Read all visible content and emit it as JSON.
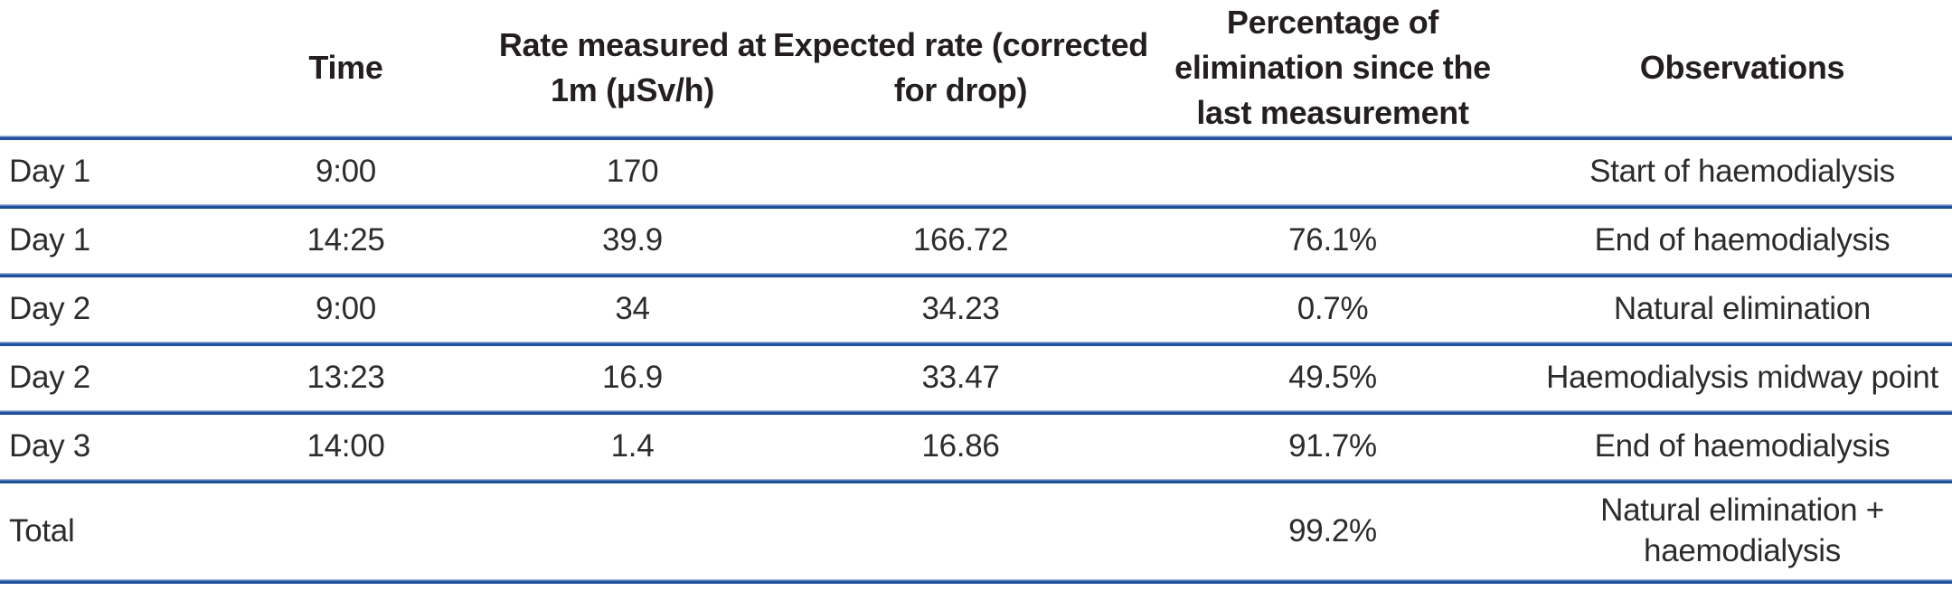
{
  "table": {
    "columns": [
      {
        "key": "day",
        "label": ""
      },
      {
        "key": "time",
        "label": "Time"
      },
      {
        "key": "rate",
        "label": "Rate measured at\n1m (μSv/h)"
      },
      {
        "key": "expected",
        "label": "Expected rate (corrected\nfor drop)"
      },
      {
        "key": "percentage",
        "label": "Percentage of\nelimination since the\nlast measurement"
      },
      {
        "key": "observations",
        "label": "Observations"
      }
    ],
    "rows": [
      {
        "day": "Day 1",
        "time": "9:00",
        "rate": "170",
        "expected": "",
        "percentage": "",
        "observations": "Start of haemodialysis"
      },
      {
        "day": "Day 1",
        "time": "14:25",
        "rate": "39.9",
        "expected": "166.72",
        "percentage": "76.1%",
        "observations": "End of haemodialysis"
      },
      {
        "day": "Day 2",
        "time": "9:00",
        "rate": "34",
        "expected": "34.23",
        "percentage": "0.7%",
        "observations": "Natural elimination"
      },
      {
        "day": "Day 2",
        "time": "13:23",
        "rate": "16.9",
        "expected": "33.47",
        "percentage": "49.5%",
        "observations": "Haemodialysis midway point"
      },
      {
        "day": "Day 3",
        "time": "14:00",
        "rate": "1.4",
        "expected": "16.86",
        "percentage": "91.7%",
        "observations": "End of haemodialysis"
      },
      {
        "day": "Total",
        "time": "",
        "rate": "",
        "expected": "",
        "percentage": "99.2%",
        "observations": "Natural elimination + haemodialysis"
      }
    ],
    "colors": {
      "rule_dark": "#21509c",
      "rule_light": "#9db4d8",
      "header_text": "#231f20",
      "body_text": "#2e2c2a"
    }
  }
}
